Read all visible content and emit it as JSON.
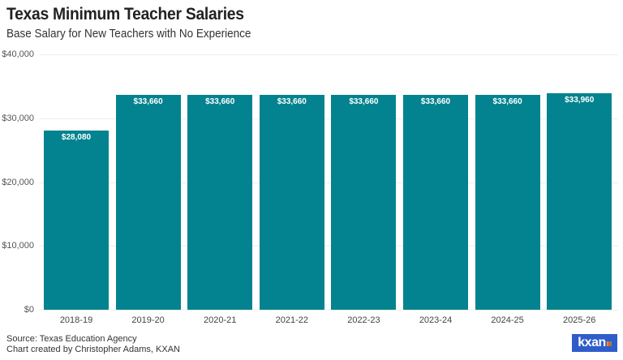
{
  "header": {
    "title": "Texas Minimum Teacher Salaries",
    "subtitle": "Base Salary for New Teachers with No Experience"
  },
  "footer": {
    "source": "Source: Texas Education Agency",
    "credit": "Chart created by Christopher Adams, KXAN",
    "logo_text": "kxan"
  },
  "colors": {
    "bar": "#03838f",
    "logo_bg": "#2f5ccb"
  },
  "y_ticks": [
    "$0",
    "$10,000",
    "$20,000",
    "$30,000",
    "$40,000"
  ],
  "chart_data": {
    "type": "bar",
    "title": "Texas Minimum Teacher Salaries",
    "subtitle": "Base Salary for New Teachers with No Experience",
    "categories": [
      "2018-19",
      "2019-20",
      "2020-21",
      "2021-22",
      "2022-23",
      "2023-24",
      "2024-25",
      "2025-26"
    ],
    "values": [
      28080,
      33660,
      33660,
      33660,
      33660,
      33660,
      33660,
      33960
    ],
    "value_labels": [
      "$28,080",
      "$33,660",
      "$33,660",
      "$33,660",
      "$33,660",
      "$33,660",
      "$33,660",
      "$33,960"
    ],
    "xlabel": "",
    "ylabel": "",
    "ylim": [
      0,
      40000
    ],
    "y_ticks": [
      0,
      10000,
      20000,
      30000,
      40000
    ],
    "grid": true,
    "legend": "none"
  }
}
